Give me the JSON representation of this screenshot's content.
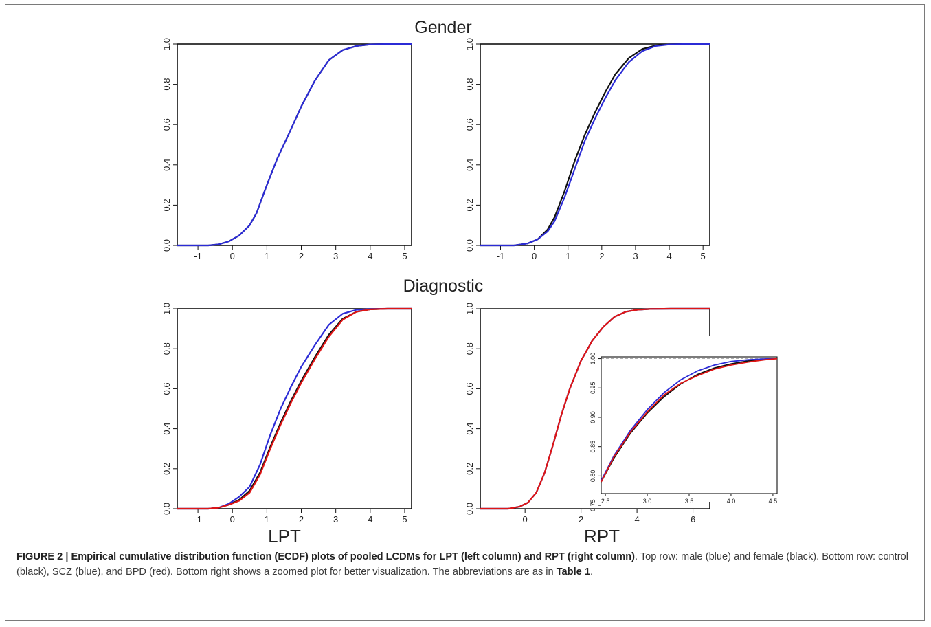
{
  "figure": {
    "row_titles": [
      "Gender",
      "Diagnostic"
    ],
    "column_labels": [
      "LPT",
      "RPT"
    ],
    "caption": {
      "label": "FIGURE 2 | Empirical cumulative distribution function (ECDF) plots of pooled LCDMs for LPT (left column) and RPT (right column)",
      "text": ". Top row: male (blue) and female (black). Bottom row: control (black), SCZ (blue), and BPD (red). Bottom right shows a zoomed plot for better visualization. The abbreviations are as in ",
      "ref": "Table 1",
      "end": "."
    }
  },
  "colors": {
    "black": "#111111",
    "blue": "#2b2bd6",
    "red": "#e01515",
    "refline": "#b0b0b0"
  },
  "chart_data": [
    {
      "id": "gender-lpt",
      "type": "line",
      "title": "Gender",
      "xlim": [
        -1.6,
        5.2
      ],
      "ylim": [
        0,
        1
      ],
      "xticks": [
        -1,
        0,
        1,
        2,
        3,
        4,
        5
      ],
      "yticks": [
        0.0,
        0.2,
        0.4,
        0.6,
        0.8,
        1.0
      ],
      "ytick_labels": [
        "0.0",
        "0.2",
        "0.4",
        "0.6",
        "0.8",
        "1.0"
      ],
      "hlines": [
        0,
        1
      ],
      "series": [
        {
          "color": "black",
          "x": [
            -1.6,
            -0.7,
            -0.4,
            -0.1,
            0.2,
            0.5,
            0.7,
            1.0,
            1.3,
            1.6,
            2.0,
            2.4,
            2.8,
            3.2,
            3.6,
            4.0,
            4.5,
            5.2
          ],
          "y": [
            0.0,
            0.0,
            0.005,
            0.02,
            0.05,
            0.1,
            0.16,
            0.3,
            0.43,
            0.54,
            0.69,
            0.82,
            0.92,
            0.97,
            0.99,
            0.998,
            1.0,
            1.0
          ]
        },
        {
          "color": "blue",
          "x": [
            -1.6,
            -0.7,
            -0.4,
            -0.1,
            0.2,
            0.5,
            0.7,
            1.0,
            1.3,
            1.6,
            2.0,
            2.4,
            2.8,
            3.2,
            3.6,
            4.0,
            4.5,
            5.2
          ],
          "y": [
            0.0,
            0.0,
            0.005,
            0.02,
            0.05,
            0.1,
            0.16,
            0.3,
            0.43,
            0.54,
            0.69,
            0.82,
            0.92,
            0.97,
            0.99,
            0.998,
            1.0,
            1.0
          ]
        }
      ]
    },
    {
      "id": "gender-rpt",
      "type": "line",
      "title": "Gender",
      "xlim": [
        -1.6,
        5.2
      ],
      "ylim": [
        0,
        1
      ],
      "xticks": [
        -1,
        0,
        1,
        2,
        3,
        4,
        5
      ],
      "yticks": [
        0.0,
        0.2,
        0.4,
        0.6,
        0.8,
        1.0
      ],
      "ytick_labels": [
        "0.0",
        "0.2",
        "0.4",
        "0.6",
        "0.8",
        "1.0"
      ],
      "hlines": [
        0,
        1
      ],
      "series": [
        {
          "color": "black",
          "x": [
            -1.6,
            -0.6,
            -0.2,
            0.1,
            0.4,
            0.6,
            0.9,
            1.2,
            1.5,
            1.8,
            2.1,
            2.4,
            2.8,
            3.2,
            3.6,
            4.0,
            4.5,
            5.2
          ],
          "y": [
            0.0,
            0.0,
            0.01,
            0.03,
            0.08,
            0.14,
            0.27,
            0.42,
            0.55,
            0.66,
            0.76,
            0.85,
            0.93,
            0.975,
            0.993,
            0.999,
            1.0,
            1.0
          ]
        },
        {
          "color": "blue",
          "x": [
            -1.6,
            -0.6,
            -0.2,
            0.1,
            0.4,
            0.6,
            0.9,
            1.2,
            1.5,
            1.8,
            2.1,
            2.4,
            2.8,
            3.2,
            3.6,
            4.0,
            4.5,
            5.2
          ],
          "y": [
            0.0,
            0.0,
            0.01,
            0.03,
            0.07,
            0.12,
            0.24,
            0.38,
            0.52,
            0.63,
            0.73,
            0.82,
            0.91,
            0.965,
            0.99,
            0.998,
            1.0,
            1.0
          ]
        }
      ]
    },
    {
      "id": "diagnostic-lpt",
      "type": "line",
      "title": "Diagnostic",
      "xlabel": "LPT",
      "xlim": [
        -1.6,
        5.2
      ],
      "ylim": [
        0,
        1
      ],
      "xticks": [
        -1,
        0,
        1,
        2,
        3,
        4,
        5
      ],
      "yticks": [
        0.0,
        0.2,
        0.4,
        0.6,
        0.8,
        1.0
      ],
      "ytick_labels": [
        "0.0",
        "0.2",
        "0.4",
        "0.6",
        "0.8",
        "1.0"
      ],
      "hlines": [
        0,
        1
      ],
      "series": [
        {
          "color": "black",
          "x": [
            -1.6,
            -0.7,
            -0.4,
            -0.1,
            0.2,
            0.5,
            0.8,
            1.1,
            1.4,
            1.7,
            2.0,
            2.4,
            2.8,
            3.2,
            3.6,
            4.0,
            4.5,
            5.2
          ],
          "y": [
            0.0,
            0.0,
            0.005,
            0.02,
            0.045,
            0.09,
            0.18,
            0.31,
            0.43,
            0.54,
            0.64,
            0.76,
            0.87,
            0.95,
            0.985,
            0.997,
            1.0,
            1.0
          ]
        },
        {
          "color": "blue",
          "x": [
            -1.6,
            -0.7,
            -0.4,
            -0.1,
            0.2,
            0.5,
            0.8,
            1.1,
            1.4,
            1.7,
            2.0,
            2.4,
            2.8,
            3.2,
            3.6,
            4.0,
            4.5,
            5.2
          ],
          "y": [
            0.0,
            0.0,
            0.005,
            0.025,
            0.06,
            0.11,
            0.22,
            0.37,
            0.5,
            0.61,
            0.71,
            0.82,
            0.92,
            0.975,
            0.995,
            0.999,
            1.0,
            1.0
          ]
        },
        {
          "color": "red",
          "x": [
            -1.6,
            -0.7,
            -0.4,
            -0.1,
            0.2,
            0.5,
            0.8,
            1.1,
            1.4,
            1.7,
            2.0,
            2.4,
            2.8,
            3.2,
            3.6,
            4.0,
            4.5,
            5.2
          ],
          "y": [
            0.0,
            0.0,
            0.005,
            0.02,
            0.04,
            0.08,
            0.17,
            0.3,
            0.42,
            0.53,
            0.63,
            0.75,
            0.86,
            0.945,
            0.985,
            0.997,
            1.0,
            1.0
          ]
        }
      ]
    },
    {
      "id": "diagnostic-rpt",
      "type": "line",
      "title": "Diagnostic",
      "xlabel": "RPT",
      "xlim": [
        -1.6,
        6.6
      ],
      "ylim": [
        0,
        1
      ],
      "xticks": [
        0,
        2,
        4,
        6
      ],
      "yticks": [
        0.0,
        0.2,
        0.4,
        0.6,
        0.8,
        1.0
      ],
      "ytick_labels": [
        "0.0",
        "0.2",
        "0.4",
        "0.6",
        "0.8",
        "1.0"
      ],
      "hlines": [
        0,
        1
      ],
      "series": [
        {
          "color": "black",
          "x": [
            -1.6,
            -0.6,
            -0.2,
            0.1,
            0.4,
            0.7,
            1.0,
            1.3,
            1.6,
            2.0,
            2.4,
            2.8,
            3.2,
            3.6,
            4.0,
            4.5,
            5.2,
            6.6
          ],
          "y": [
            0.0,
            0.0,
            0.01,
            0.03,
            0.08,
            0.18,
            0.32,
            0.47,
            0.6,
            0.74,
            0.84,
            0.91,
            0.96,
            0.985,
            0.995,
            0.999,
            1.0,
            1.0
          ]
        },
        {
          "color": "blue",
          "x": [
            -1.6,
            -0.6,
            -0.2,
            0.1,
            0.4,
            0.7,
            1.0,
            1.3,
            1.6,
            2.0,
            2.4,
            2.8,
            3.2,
            3.6,
            4.0,
            4.5,
            5.2,
            6.6
          ],
          "y": [
            0.0,
            0.0,
            0.01,
            0.03,
            0.08,
            0.18,
            0.32,
            0.47,
            0.6,
            0.74,
            0.84,
            0.91,
            0.96,
            0.985,
            0.995,
            0.999,
            1.0,
            1.0
          ]
        },
        {
          "color": "red",
          "x": [
            -1.6,
            -0.6,
            -0.2,
            0.1,
            0.4,
            0.7,
            1.0,
            1.3,
            1.6,
            2.0,
            2.4,
            2.8,
            3.2,
            3.6,
            4.0,
            4.5,
            5.2,
            6.6
          ],
          "y": [
            0.0,
            0.0,
            0.01,
            0.03,
            0.08,
            0.18,
            0.32,
            0.47,
            0.6,
            0.74,
            0.84,
            0.91,
            0.96,
            0.985,
            0.995,
            0.999,
            1.0,
            1.0
          ]
        }
      ]
    },
    {
      "id": "diagnostic-rpt-zoom",
      "type": "line",
      "xlim": [
        2.45,
        4.55
      ],
      "ylim": [
        0.77,
        1.003
      ],
      "xticks": [
        2.5,
        3.0,
        3.5,
        4.0,
        4.5
      ],
      "yticks": [
        0.75,
        0.8,
        0.85,
        0.9,
        0.95,
        1.0
      ],
      "xtick_labels": [
        "2.5",
        "3.0",
        "3.5",
        "4.0",
        "4.5"
      ],
      "ytick_labels": [
        "0.75",
        "0.80",
        "0.85",
        "0.90",
        "0.95",
        "1.00"
      ],
      "hlines": [
        1.0
      ],
      "series": [
        {
          "color": "black",
          "x": [
            2.45,
            2.6,
            2.8,
            3.0,
            3.2,
            3.4,
            3.6,
            3.8,
            4.0,
            4.2,
            4.4,
            4.55
          ],
          "y": [
            0.79,
            0.83,
            0.873,
            0.907,
            0.935,
            0.957,
            0.973,
            0.984,
            0.991,
            0.996,
            0.999,
            1.0
          ]
        },
        {
          "color": "blue",
          "x": [
            2.45,
            2.6,
            2.8,
            3.0,
            3.2,
            3.4,
            3.6,
            3.8,
            4.0,
            4.2,
            4.4,
            4.55
          ],
          "y": [
            0.792,
            0.834,
            0.878,
            0.913,
            0.942,
            0.964,
            0.979,
            0.989,
            0.995,
            0.998,
            0.9995,
            1.0
          ]
        },
        {
          "color": "red",
          "x": [
            2.45,
            2.6,
            2.8,
            3.0,
            3.2,
            3.4,
            3.6,
            3.8,
            4.0,
            4.2,
            4.4,
            4.55
          ],
          "y": [
            0.79,
            0.832,
            0.875,
            0.909,
            0.938,
            0.958,
            0.971,
            0.982,
            0.989,
            0.994,
            0.998,
            1.0
          ]
        }
      ]
    }
  ]
}
